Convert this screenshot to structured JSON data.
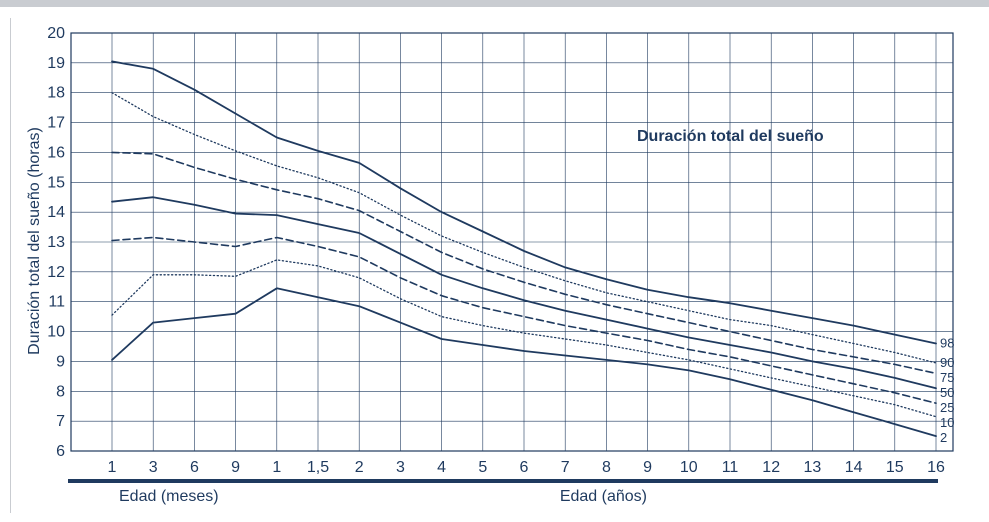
{
  "chart_data": {
    "type": "line",
    "title": "Duración total del sueño",
    "ylabel": "Duración total del sueño (horas)",
    "ylim": [
      6,
      20
    ],
    "grid": true,
    "yticks": [
      "6",
      "7",
      "8",
      "9",
      "10",
      "11",
      "12",
      "13",
      "14",
      "15",
      "16",
      "17",
      "18",
      "19",
      "20"
    ],
    "x": [
      "1",
      "3",
      "6",
      "9",
      "1",
      "1,5",
      "2",
      "3",
      "4",
      "5",
      "6",
      "7",
      "8",
      "9",
      "10",
      "11",
      "12",
      "13",
      "14",
      "15",
      "16"
    ],
    "age_groups": [
      {
        "label": "Edad (meses)",
        "from": 0,
        "to": 3
      },
      {
        "label": "Edad (años)",
        "from": 4,
        "to": 20
      }
    ],
    "series": [
      {
        "name": "98",
        "style": "solid",
        "values": [
          19.05,
          18.8,
          18.1,
          17.3,
          16.5,
          16.05,
          15.65,
          14.8,
          14.0,
          13.35,
          12.7,
          12.15,
          11.75,
          11.4,
          11.15,
          10.95,
          10.7,
          10.45,
          10.2,
          9.9,
          9.6
        ]
      },
      {
        "name": "90",
        "style": "dotted",
        "values": [
          18.0,
          17.2,
          16.6,
          16.05,
          15.55,
          15.15,
          14.65,
          13.9,
          13.2,
          12.65,
          12.15,
          11.7,
          11.3,
          11.0,
          10.7,
          10.4,
          10.2,
          9.9,
          9.6,
          9.3,
          8.95
        ]
      },
      {
        "name": "75",
        "style": "dashed",
        "values": [
          16.0,
          15.95,
          15.5,
          15.1,
          14.75,
          14.45,
          14.05,
          13.35,
          12.65,
          12.1,
          11.65,
          11.25,
          10.9,
          10.6,
          10.3,
          10.0,
          9.7,
          9.4,
          9.15,
          8.9,
          8.6
        ]
      },
      {
        "name": "50",
        "style": "solid",
        "values": [
          14.35,
          14.5,
          14.25,
          13.95,
          13.9,
          13.6,
          13.3,
          12.6,
          11.9,
          11.45,
          11.05,
          10.7,
          10.4,
          10.1,
          9.8,
          9.55,
          9.3,
          9.0,
          8.75,
          8.45,
          8.1
        ]
      },
      {
        "name": "25",
        "style": "dashed",
        "values": [
          13.05,
          13.15,
          13.0,
          12.85,
          13.15,
          12.85,
          12.5,
          11.8,
          11.2,
          10.8,
          10.5,
          10.2,
          9.95,
          9.7,
          9.4,
          9.15,
          8.85,
          8.55,
          8.25,
          7.95,
          7.6
        ]
      },
      {
        "name": "10",
        "style": "dotted",
        "values": [
          10.55,
          11.9,
          11.9,
          11.85,
          12.4,
          12.2,
          11.8,
          11.1,
          10.5,
          10.2,
          9.95,
          9.75,
          9.55,
          9.3,
          9.05,
          8.75,
          8.45,
          8.15,
          7.85,
          7.55,
          7.15
        ]
      },
      {
        "name": "2",
        "style": "solid",
        "values": [
          9.05,
          10.3,
          10.45,
          10.6,
          11.45,
          11.15,
          10.85,
          10.3,
          9.75,
          9.55,
          9.35,
          9.2,
          9.05,
          8.9,
          8.7,
          8.4,
          8.05,
          7.7,
          7.3,
          6.9,
          6.5
        ]
      }
    ]
  }
}
